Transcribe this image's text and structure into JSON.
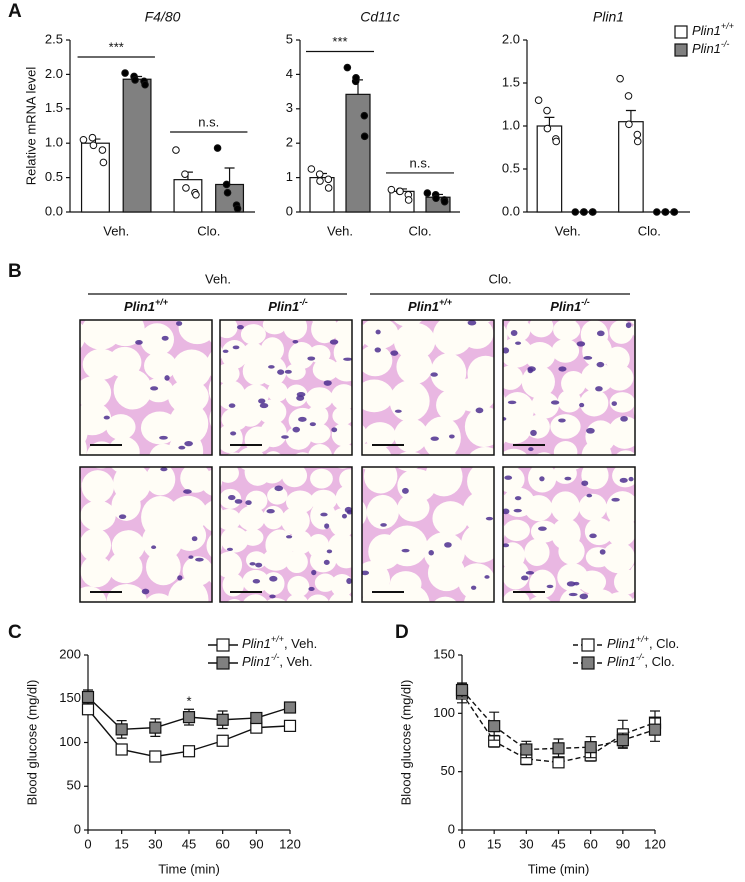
{
  "panel_labels": [
    "A",
    "B",
    "C",
    "D"
  ],
  "histology": {
    "treatments": [
      "Veh.",
      "Clo."
    ],
    "genotypes": [
      "Plin1+/+",
      "Plin1-/-",
      "Plin1+/+",
      "Plin1-/-"
    ]
  },
  "chart_data": [
    {
      "type": "bar",
      "title": "F4/80",
      "ylabel": "Relative mRNA level",
      "categories": [
        "Veh.",
        "Clo."
      ],
      "ylim": [
        0,
        2.5
      ],
      "yticks": [
        {
          "value": 0,
          "label": "0.0"
        },
        0.5,
        {
          "value": 1,
          "label": "1.0"
        },
        1.5,
        {
          "value": 2,
          "label": "2.0"
        },
        2.5
      ],
      "annotations": [
        {
          "text": "***",
          "at": "Veh."
        },
        {
          "text": "n.s.",
          "at": "Clo."
        }
      ],
      "series": [
        {
          "color": "#ffffff",
          "point_color": "#ffffff",
          "values": [
            1.0,
            0.47
          ],
          "errors": [
            0.06,
            0.11
          ],
          "points": [
            [
              1.05,
              1.08,
              0.97,
              0.9,
              0.72
            ],
            [
              0.9,
              0.55,
              0.35,
              0.28,
              0.25
            ]
          ]
        },
        {
          "color": "#808080",
          "point_color": "#000000",
          "values": [
            1.93,
            0.4
          ],
          "errors": [
            0.04,
            0.24
          ],
          "points": [
            [
              2.02,
              1.97,
              1.92,
              1.9,
              1.85
            ],
            [
              0.93,
              0.4,
              0.28,
              0.1,
              0.05
            ]
          ]
        }
      ]
    },
    {
      "type": "bar",
      "title": "Cd11c",
      "categories": [
        "Veh.",
        "Clo."
      ],
      "ylim": [
        0,
        5
      ],
      "yticks": [
        0,
        1,
        2,
        3,
        4,
        5
      ],
      "annotations": [
        {
          "text": "***",
          "at": "Veh."
        },
        {
          "text": "n.s.",
          "at": "Clo."
        }
      ],
      "series": [
        {
          "color": "#ffffff",
          "point_color": "#ffffff",
          "values": [
            1.0,
            0.6
          ],
          "errors": [
            0.12,
            0.07
          ],
          "points": [
            [
              1.25,
              1.1,
              0.9,
              0.95,
              0.7
            ],
            [
              0.65,
              0.6,
              0.6,
              0.5,
              0.35
            ]
          ]
        },
        {
          "color": "#808080",
          "point_color": "#000000",
          "values": [
            3.42,
            0.43
          ],
          "errors": [
            0.42,
            0.08
          ],
          "points": [
            [
              4.2,
              3.8,
              3.9,
              2.8,
              2.2
            ],
            [
              0.55,
              0.5,
              0.4,
              0.35,
              0.3
            ]
          ]
        }
      ]
    },
    {
      "type": "bar",
      "title": "Plin1",
      "categories": [
        "Veh.",
        "Clo."
      ],
      "legend": "upper right",
      "ylim": [
        0,
        2
      ],
      "yticks": [
        {
          "value": 0,
          "label": "0.0"
        },
        0.5,
        {
          "value": 1,
          "label": "1.0"
        },
        1.5,
        {
          "value": 2,
          "label": "2.0"
        }
      ],
      "series": [
        {
          "name": "Plin1+/+",
          "color": "#ffffff",
          "point_color": "#ffffff",
          "values": [
            1.0,
            1.05
          ],
          "errors": [
            0.1,
            0.13
          ],
          "points": [
            [
              1.3,
              1.18,
              0.97,
              0.85,
              0.82
            ],
            [
              1.55,
              1.35,
              1.02,
              0.9,
              0.82
            ]
          ]
        },
        {
          "name": "Plin1-/-",
          "color": "#808080",
          "point_color": "#000000",
          "values": [
            0,
            0
          ],
          "errors": [
            0,
            0
          ],
          "points": [
            [
              0,
              0,
              0,
              0,
              0
            ],
            [
              0,
              0,
              0,
              0,
              0
            ]
          ]
        }
      ]
    },
    {
      "type": "line",
      "xlabel": "Time (min)",
      "ylabel": "Blood glucose (mg/dl)",
      "legend": "upper right",
      "categories": [
        "0",
        "15",
        "30",
        "45",
        "60",
        "90",
        "120"
      ],
      "ylim": [
        0,
        200
      ],
      "yticks": [
        0,
        50,
        100,
        150,
        200
      ],
      "annotations": [
        {
          "text": "*",
          "at": "45"
        }
      ],
      "series": [
        {
          "name": "Plin1+/+, Veh.",
          "color": "#ffffff",
          "linestyle": "solid",
          "values": [
            138,
            92,
            84,
            90,
            102,
            117,
            119
          ],
          "errors": [
            5,
            4,
            3,
            3,
            4,
            3,
            3
          ]
        },
        {
          "name": "Plin1-/-, Veh.",
          "color": "#808080",
          "linestyle": "solid",
          "values": [
            152,
            115,
            117,
            129,
            126,
            128,
            140
          ],
          "errors": [
            8,
            10,
            10,
            9,
            10,
            6,
            5
          ]
        }
      ]
    },
    {
      "type": "line",
      "xlabel": "Time (min)",
      "ylabel": "Blood glucose (mg/dl)",
      "legend": "upper right",
      "categories": [
        "0",
        "15",
        "30",
        "45",
        "60",
        "90",
        "120"
      ],
      "ylim": [
        0,
        150
      ],
      "yticks": [
        0,
        50,
        100,
        150
      ],
      "series": [
        {
          "name": "Plin1+/+, Clo.",
          "color": "#ffffff",
          "linestyle": "dashed",
          "values": [
            117,
            76,
            61,
            58,
            64,
            82,
            92
          ],
          "errors": [
            8,
            5,
            5,
            4,
            5,
            12,
            10
          ]
        },
        {
          "name": "Plin1-/-, Clo.",
          "color": "#808080",
          "linestyle": "dashed",
          "values": [
            120,
            89,
            69,
            70,
            71,
            77,
            86
          ],
          "errors": [
            6,
            12,
            7,
            8,
            9,
            6,
            10
          ]
        }
      ]
    }
  ]
}
